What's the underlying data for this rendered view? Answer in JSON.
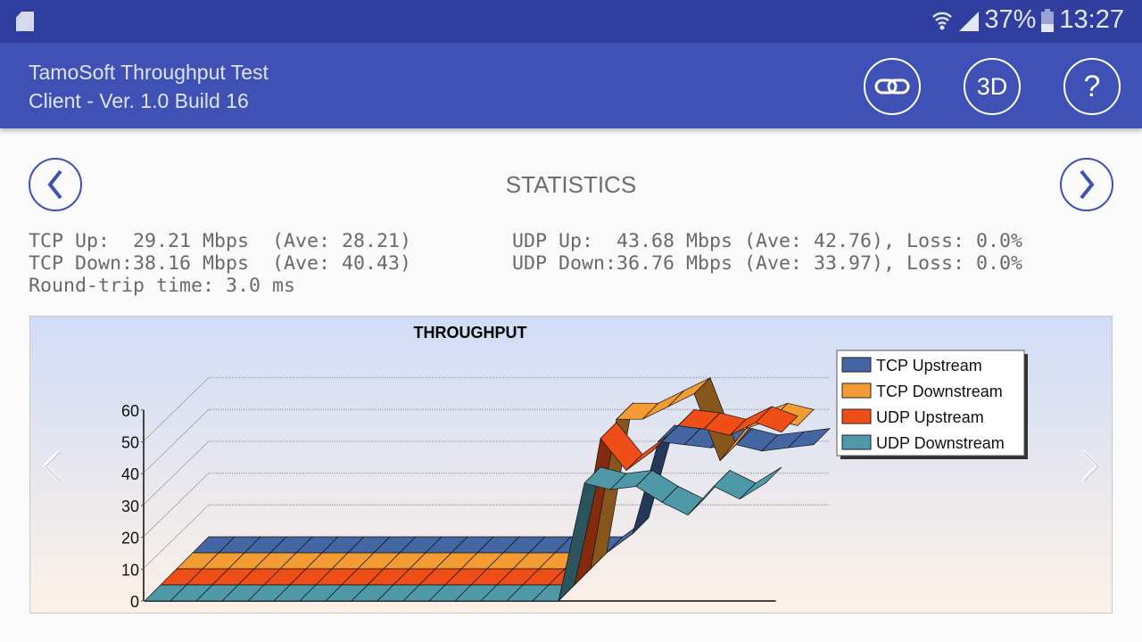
{
  "status_bar": {
    "battery": "37%",
    "time": "13:27",
    "icons": [
      "sd-card-icon",
      "wifi-icon",
      "signal-icon",
      "battery-icon"
    ]
  },
  "app_bar": {
    "title": "TamoSoft Throughput Test",
    "subtitle": "Client - Ver. 1.0 Build 16",
    "buttons": [
      {
        "icon": "link-icon",
        "label": ""
      },
      {
        "icon": "3d-icon",
        "label": "3D"
      },
      {
        "icon": "help-icon",
        "label": "?"
      }
    ]
  },
  "page": {
    "title": "STATISTICS"
  },
  "stats": {
    "tcp_up": "TCP Up:  29.21 Mbps  (Ave: 28.21)",
    "tcp_down": "TCP Down:38.16 Mbps  (Ave: 40.43)",
    "rtt": "Round-trip time: 3.0 ms",
    "udp_up": "UDP Up:  43.68 Mbps (Ave: 42.76), Loss: 0.0%",
    "udp_down": "UDP Down:36.76 Mbps (Ave: 33.97), Loss: 0.0%"
  },
  "chart_data": {
    "type": "3d-ribbon-line",
    "title": "THROUGHPUT",
    "ylim": [
      0,
      60
    ],
    "yticks": [
      "0",
      "10",
      "20",
      "30",
      "40",
      "50",
      "60"
    ],
    "grid": true,
    "legend_placement": "top-right",
    "series": [
      {
        "name": "TCP Upstream",
        "color": "#4466a3",
        "values": [
          0,
          0,
          0,
          0,
          0,
          0,
          0,
          0,
          0,
          0,
          0,
          0,
          0,
          0,
          0,
          0,
          0,
          6,
          35,
          34,
          33,
          34,
          32,
          33,
          34
        ]
      },
      {
        "name": "TCP Downstream",
        "color": "#f39c33",
        "values": [
          0,
          0,
          0,
          0,
          0,
          0,
          0,
          0,
          0,
          0,
          0,
          0,
          0,
          0,
          0,
          0,
          0,
          47,
          47,
          51,
          55,
          34,
          44,
          47,
          45
        ]
      },
      {
        "name": "UDP Upstream",
        "color": "#f04e18",
        "values": [
          0,
          0,
          0,
          0,
          0,
          0,
          0,
          0,
          0,
          0,
          0,
          0,
          0,
          0,
          0,
          0,
          0,
          46,
          36,
          42,
          50,
          49,
          47,
          51,
          48
        ]
      },
      {
        "name": "UDP Downstream",
        "color": "#4e98a8",
        "values": [
          0,
          0,
          0,
          0,
          0,
          0,
          0,
          0,
          0,
          0,
          0,
          0,
          0,
          0,
          0,
          0,
          0,
          37,
          35,
          36,
          31,
          27,
          36,
          32,
          37
        ]
      }
    ]
  }
}
